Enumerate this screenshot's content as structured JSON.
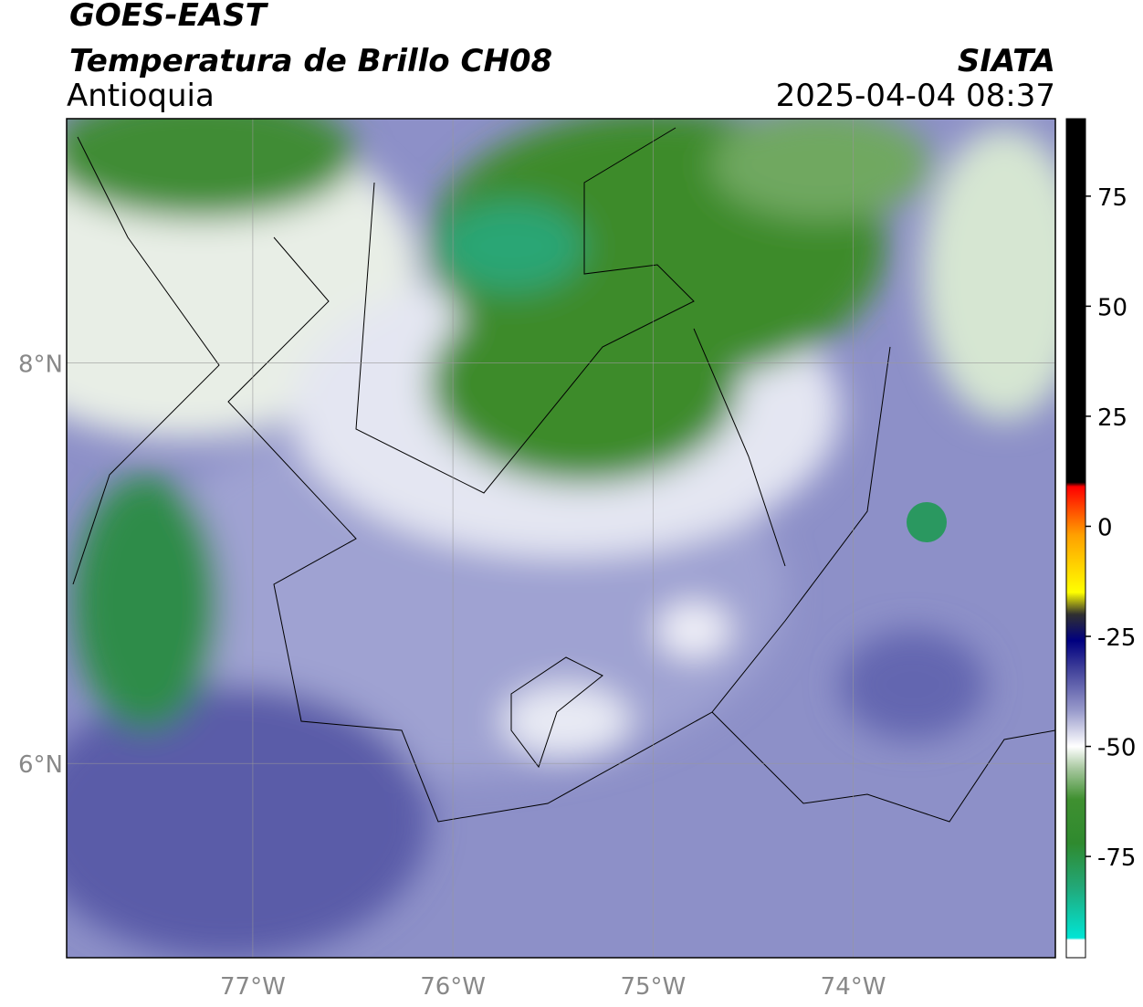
{
  "header": {
    "source": "GOES-EAST",
    "title": "Temperatura de Brillo CH08",
    "region": "Antioquia",
    "agency": "SIATA",
    "datetime": "2025-04-04 08:37"
  },
  "map": {
    "lonlim": [
      -77.93,
      -72.99
    ],
    "latlim": [
      5.03,
      9.22
    ],
    "lon_ticks": [
      {
        "value": -77,
        "label": "77°W"
      },
      {
        "value": -76,
        "label": "76°W"
      },
      {
        "value": -75,
        "label": "75°W"
      },
      {
        "value": -74,
        "label": "74°W"
      }
    ],
    "lat_ticks": [
      {
        "value": 8,
        "label": "8°N"
      },
      {
        "value": 6,
        "label": "6°N"
      }
    ],
    "grid": true
  },
  "colorbar": {
    "lim": [
      -98,
      92.6
    ],
    "ticks": [
      75,
      50,
      25,
      0,
      -25,
      -50,
      -75
    ],
    "stops": [
      {
        "value": -98,
        "color": "#ffffff"
      },
      {
        "value": -94,
        "color": "#ffffff"
      },
      {
        "value": -93.5,
        "color": "#00e5d5"
      },
      {
        "value": -82,
        "color": "#22a878"
      },
      {
        "value": -72,
        "color": "#2f8a2f"
      },
      {
        "value": -62,
        "color": "#3f9030"
      },
      {
        "value": -55,
        "color": "#a8c8a0"
      },
      {
        "value": -50,
        "color": "#ffffff"
      },
      {
        "value": -42,
        "color": "#9a9ccc"
      },
      {
        "value": -32,
        "color": "#3c3c98"
      },
      {
        "value": -26,
        "color": "#000080"
      },
      {
        "value": -20,
        "color": "#303030"
      },
      {
        "value": -15,
        "color": "#ffff00"
      },
      {
        "value": -2,
        "color": "#ffa000"
      },
      {
        "value": 9,
        "color": "#ff0000"
      },
      {
        "value": 10,
        "color": "#000000"
      },
      {
        "value": 92.6,
        "color": "#000000"
      }
    ]
  }
}
